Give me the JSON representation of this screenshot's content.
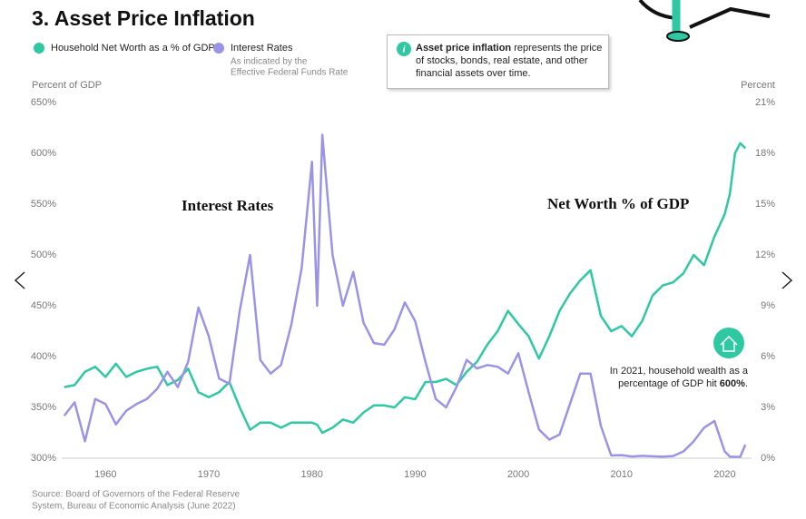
{
  "chart_data": {
    "type": "line",
    "title": "3. Asset Price Inflation",
    "ylabel": "Percent of GDP",
    "y2label": "Percent",
    "x": [
      1956,
      1957,
      1958,
      1959,
      1960,
      1961,
      1962,
      1963,
      1964,
      1965,
      1966,
      1967,
      1968,
      1969,
      1970,
      1971,
      1972,
      1973,
      1974,
      1975,
      1976,
      1977,
      1978,
      1979,
      1980,
      1980.5,
      1981,
      1982,
      1983,
      1984,
      1985,
      1986,
      1987,
      1988,
      1989,
      1990,
      1991,
      1992,
      1993,
      1994,
      1995,
      1996,
      1997,
      1998,
      1999,
      2000,
      2001,
      2002,
      2003,
      2004,
      2005,
      2006,
      2007,
      2008,
      2009,
      2010,
      2011,
      2012,
      2013,
      2014,
      2015,
      2016,
      2017,
      2018,
      2019,
      2020,
      2020.5,
      2021,
      2021.5,
      2022
    ],
    "series": [
      {
        "name": "Household Net Worth as a % of GDP",
        "color": "#2ec9a2",
        "axis": "y",
        "values": [
          370,
          372,
          385,
          390,
          380,
          393,
          380,
          385,
          388,
          390,
          372,
          377,
          388,
          365,
          360,
          365,
          375,
          350,
          328,
          335,
          335,
          330,
          335,
          335,
          335,
          333,
          325,
          330,
          338,
          335,
          345,
          352,
          352,
          350,
          360,
          358,
          375,
          375,
          378,
          372,
          385,
          395,
          412,
          425,
          445,
          432,
          420,
          398,
          420,
          445,
          462,
          475,
          485,
          440,
          425,
          430,
          420,
          435,
          460,
          470,
          473,
          482,
          500,
          490,
          518,
          540,
          560,
          600,
          610,
          605
        ]
      },
      {
        "name": "Interest Rates",
        "color": "#9b93e8",
        "axis": "y2",
        "note": [
          "As indicated by the",
          "Effective Federal Funds Rate"
        ],
        "values": [
          2.5,
          3.3,
          1.0,
          3.5,
          3.2,
          2.0,
          2.8,
          3.2,
          3.5,
          4.1,
          5.1,
          4.2,
          5.7,
          8.9,
          7.2,
          4.7,
          4.4,
          8.7,
          12.0,
          5.8,
          5.0,
          5.5,
          7.9,
          11.2,
          17.5,
          9.0,
          19.1,
          12.0,
          9.0,
          11.0,
          8.0,
          6.8,
          6.7,
          7.6,
          9.2,
          8.1,
          5.7,
          3.5,
          3.0,
          4.2,
          5.8,
          5.3,
          5.5,
          5.4,
          5.0,
          6.2,
          3.9,
          1.7,
          1.1,
          1.4,
          3.2,
          5.0,
          5.0,
          1.9,
          0.16,
          0.18,
          0.1,
          0.14,
          0.11,
          0.09,
          0.13,
          0.4,
          1.0,
          1.8,
          2.2,
          0.4,
          0.09,
          0.08,
          0.08,
          0.8
        ]
      }
    ],
    "xlim": [
      1955.75,
      2022.6
    ],
    "xticks": [
      1960,
      1970,
      1980,
      1990,
      2000,
      2010,
      2020
    ],
    "ylim": [
      300,
      650
    ],
    "yticks": [
      {
        "value": 300,
        "label": "300%"
      },
      {
        "value": 350,
        "label": "350%"
      },
      {
        "value": 400,
        "label": "400%"
      },
      {
        "value": 450,
        "label": "450%"
      },
      {
        "value": 500,
        "label": "500%"
      },
      {
        "value": 550,
        "label": "550%"
      },
      {
        "value": 600,
        "label": "600%"
      },
      {
        "value": 650,
        "label": "650%"
      }
    ],
    "y2lim": [
      0,
      21
    ],
    "y2ticks": [
      {
        "value": 0,
        "label": "0%"
      },
      {
        "value": 3,
        "label": "3%"
      },
      {
        "value": 6,
        "label": "6%"
      },
      {
        "value": 9,
        "label": "9%"
      },
      {
        "value": 12,
        "label": "12%"
      },
      {
        "value": 15,
        "label": "15%"
      },
      {
        "value": 18,
        "label": "18%"
      },
      {
        "value": 21,
        "label": "21%"
      }
    ],
    "grid": false,
    "annotations": {
      "interest_label": "Interest Rates",
      "networth_label": "Net Worth % of GDP",
      "info": {
        "bold": "Asset price inflation",
        "text": " represents the price of stocks, bonds, real estate, and other financial assets over time."
      },
      "callout": [
        "In 2021, household wealth as a percentage of GDP hit ",
        "600%",
        "."
      ]
    },
    "source": [
      "Source: Board of Governors of the Federal Reserve",
      "System, Bureau of Economic Analysis (June 2022)"
    ]
  }
}
